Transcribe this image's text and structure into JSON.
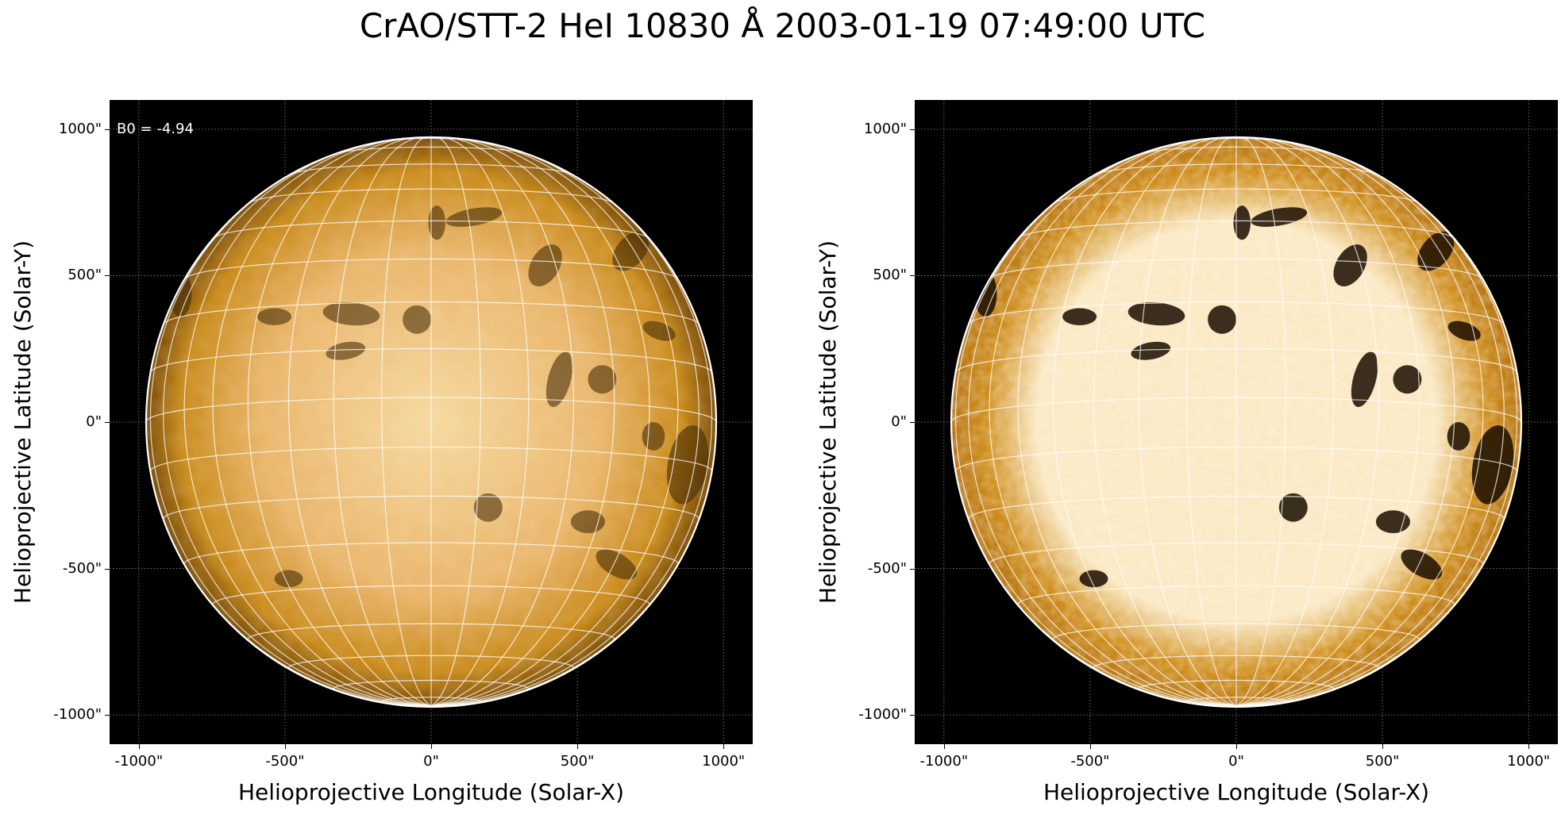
{
  "figure": {
    "title": "CrAO/STT-2 HeI 10830 Å 2003-01-19 07:49:00 UTC"
  },
  "left_panel": {
    "annotation": "B0 = -4.94",
    "xlabel": "Helioprojective Longitude (Solar-X)",
    "ylabel": "Helioprojective Latitude (Solar-Y)",
    "xticks": [
      "-1000\"",
      "-500\"",
      "0\"",
      "500\"",
      "1000\""
    ],
    "yticks": [
      "1000\"",
      "500\"",
      "0\"",
      "-500\"",
      "-1000\""
    ],
    "colormap": {
      "dark": "#000000",
      "mid": "#c98a1a",
      "bright": "#f6d9a0"
    }
  },
  "right_panel": {
    "xlabel": "Helioprojective Longitude (Solar-X)",
    "ylabel": "Helioprojective Latitude (Solar-Y)",
    "xticks": [
      "-1000\"",
      "-500\"",
      "0\"",
      "500\"",
      "1000\""
    ],
    "yticks": [
      "1000\"",
      "500\"",
      "0\"",
      "-500\"",
      "-1000\""
    ],
    "colormap": {
      "dark": "#000000",
      "mid": "#d08f1e",
      "bright": "#fbe9c4"
    }
  },
  "axis_limits": {
    "x": [
      -1100,
      1100
    ],
    "y": [
      -1100,
      1100
    ]
  },
  "tick_values": [
    -1000,
    -500,
    0,
    500,
    1000
  ],
  "solar_radius_arcsec": 975,
  "grid_spacing_deg": 10
}
